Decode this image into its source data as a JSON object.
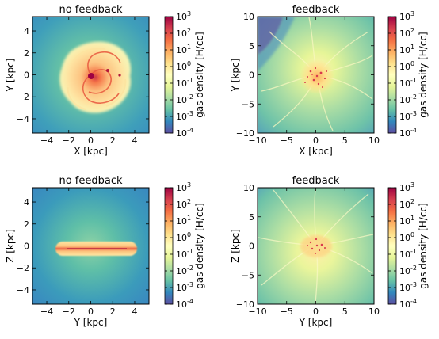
{
  "panels": [
    {
      "title": "no feedback",
      "xlabel": "X [kpc]",
      "ylabel": "Y [kpc]",
      "xlim": [
        -5.3,
        5.3
      ],
      "ylim": [
        -5.3,
        5.3
      ],
      "xticks": [
        -4,
        -2,
        0,
        2,
        4
      ],
      "yticks": [
        -4,
        -2,
        0,
        2,
        4
      ],
      "view": "face-on",
      "feedback": false
    },
    {
      "title": "feedback",
      "xlabel": "X [kpc]",
      "ylabel": "Y [kpc]",
      "xlim": [
        -10,
        10
      ],
      "ylim": [
        -10,
        10
      ],
      "xticks": [
        -10,
        -5,
        0,
        5,
        10
      ],
      "yticks": [
        -10,
        -5,
        0,
        5,
        10
      ],
      "view": "face-on",
      "feedback": true
    },
    {
      "title": "no feedback",
      "xlabel": "Y [kpc]",
      "ylabel": "Z [kpc]",
      "xlim": [
        -5.3,
        5.3
      ],
      "ylim": [
        -5.3,
        5.3
      ],
      "xticks": [
        -4,
        -2,
        0,
        2,
        4
      ],
      "yticks": [
        -4,
        -2,
        0,
        2,
        4
      ],
      "view": "edge-on",
      "feedback": false
    },
    {
      "title": "feedback",
      "xlabel": "Y [kpc]",
      "ylabel": "Z [kpc]",
      "xlim": [
        -10,
        10
      ],
      "ylim": [
        -10,
        10
      ],
      "xticks": [
        -10,
        -5,
        0,
        5,
        10
      ],
      "yticks": [
        -10,
        -5,
        0,
        5,
        10
      ],
      "view": "edge-on",
      "feedback": true
    }
  ],
  "colorbar": {
    "label": "gas density [H/cc]",
    "exponents": [
      3,
      2,
      1,
      0,
      -1,
      -2,
      -3,
      -4
    ],
    "base": "10",
    "colors": [
      "#9e0142",
      "#d53e4f",
      "#f46d43",
      "#fdae61",
      "#fee08b",
      "#ffffbf",
      "#e6f598",
      "#abdda4",
      "#66c2a5",
      "#3288bd",
      "#5e4fa2"
    ]
  }
}
